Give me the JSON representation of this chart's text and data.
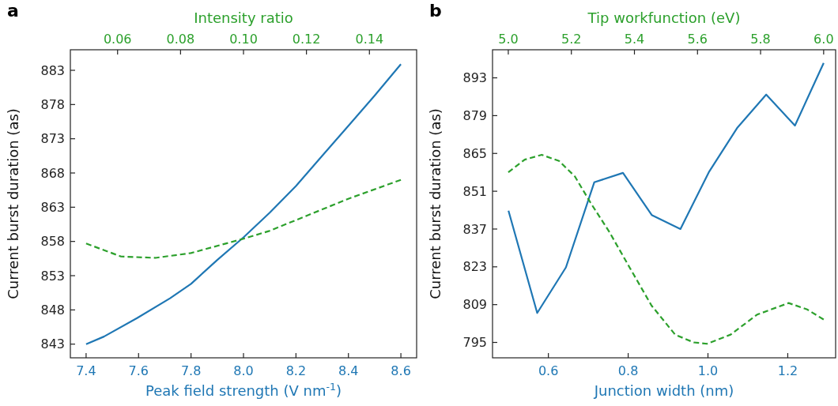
{
  "chart_data": [
    {
      "type": "line",
      "title": "a",
      "xlabel": "Peak field strength (V nm$^{-1}$)",
      "x2label": "Intensity ratio",
      "ylabel": "Current burst duration (as)",
      "xlim": [
        7.34,
        8.66
      ],
      "xticks": [
        7.4,
        7.6,
        7.8,
        {
          "value": 8,
          "label": "8.0"
        },
        8.2,
        8.4,
        8.6
      ],
      "x2lim": [
        0.045,
        0.155
      ],
      "x2ticks": [
        0.06,
        0.08,
        {
          "value": 0.1,
          "label": "0.10"
        },
        0.12,
        0.14
      ],
      "ylim": [
        841,
        886
      ],
      "yticks": [
        843,
        848,
        853,
        858,
        863,
        868,
        873,
        878,
        883
      ],
      "series": [
        {
          "color": "#1f77b4",
          "line_style": "solid",
          "x": [
            7.4,
            7.468,
            7.594,
            7.72,
            7.8,
            7.9,
            8.0,
            8.1,
            8.2,
            8.3,
            8.4,
            8.5,
            8.6
          ],
          "values": [
            843,
            844.1,
            846.8,
            849.7,
            851.8,
            855.3,
            858.6,
            862.2,
            866.1,
            870.5,
            874.9,
            879.3,
            883.9
          ]
        },
        {
          "color": "#2ca02c",
          "line_style": "dashed",
          "axis": "x2",
          "x": [
            0.05,
            0.0611,
            0.072,
            0.0833,
            0.1,
            0.108,
            0.1214,
            0.1331,
            0.15
          ],
          "values": [
            857.7,
            855.8,
            855.6,
            856.3,
            858.4,
            859.5,
            862.0,
            864.2,
            867.0
          ]
        }
      ]
    },
    {
      "type": "line",
      "title": "b",
      "xlabel": "Junction width (nm)",
      "x2label": "Tip workfunction (eV)",
      "ylabel": "Current burst duration (as)",
      "xlim": [
        0.46,
        1.32
      ],
      "xticks": [
        0.6,
        0.8,
        {
          "value": 1,
          "label": "1.0"
        },
        1.2
      ],
      "x2lim": [
        4.95,
        6.038
      ],
      "x2ticks": [
        {
          "value": 5,
          "label": "5.0"
        },
        5.2,
        5.4,
        5.6,
        5.8,
        {
          "value": 6,
          "label": "6.0"
        }
      ],
      "ylim": [
        789.3,
        903.4
      ],
      "yticks": [
        795,
        809,
        823,
        837,
        851,
        865,
        879,
        893
      ],
      "series": [
        {
          "color": "#1f77b4",
          "line_style": "solid",
          "x": [
            0.5,
            0.572,
            0.644,
            0.715,
            0.787,
            0.859,
            0.931,
            1.002,
            1.074,
            1.146,
            1.218,
            1.29
          ],
          "values": [
            843.8,
            805.9,
            822.8,
            854.3,
            857.8,
            842.2,
            837.0,
            858.0,
            874.6,
            886.8,
            875.3,
            898.5
          ]
        },
        {
          "color": "#2ca02c",
          "line_style": "dashed",
          "axis": "x2",
          "x": [
            5.0,
            5.052,
            5.106,
            5.161,
            5.211,
            5.261,
            5.32,
            5.387,
            5.454,
            5.529,
            5.588,
            5.63,
            5.705,
            5.789,
            5.889,
            5.948,
            6.0
          ],
          "values": [
            858.0,
            862.7,
            864.5,
            862.2,
            856.5,
            846.7,
            836.0,
            822.3,
            808.7,
            797.9,
            795.0,
            794.5,
            797.9,
            805.3,
            809.6,
            807.2,
            803.5
          ]
        }
      ]
    }
  ]
}
